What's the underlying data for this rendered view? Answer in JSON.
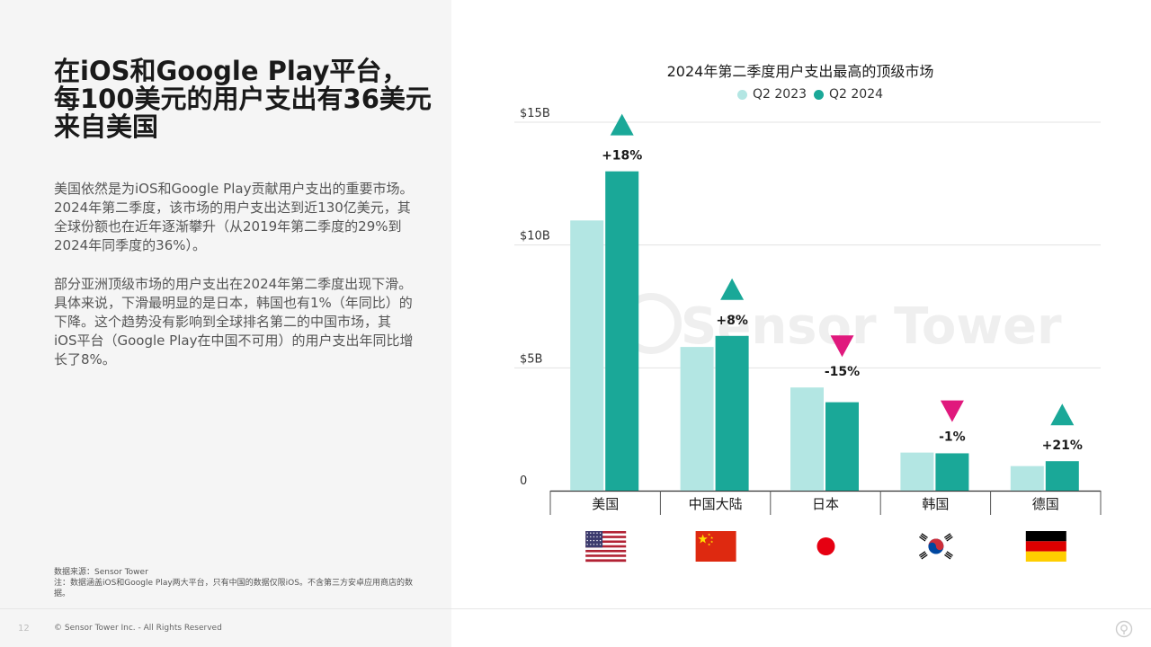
{
  "headline": "在iOS和Google Play平台，每100美元的用户支出有36美元来自美国",
  "paragraphs": [
    "美国依然是为iOS和Google Play贡献用户支出的重要市场。2024年第二季度，该市场的用户支出达到近130亿美元，其全球份额也在近年逐渐攀升（从2019年第二季度的29%到2024年同季度的36%）。",
    "部分亚洲顶级市场的用户支出在2024年第二季度出现下滑。具体来说，下滑最明显的是日本，韩国也有1%（年同比）的下降。这个趋势没有影响到全球排名第二的中国市场，其iOS平台（Google Play在中国不可用）的用户支出年同比增长了8%。"
  ],
  "source": {
    "line1": "数据来源：Sensor Tower",
    "line2": "注：数据涵盖iOS和Google Play两大平台，只有中国的数据仅限iOS。不含第三方安卓应用商店的数据。"
  },
  "footer": {
    "page_number": "12",
    "copyright": "© Sensor Tower Inc. - All Rights Reserved"
  },
  "watermark": "Sensor Tower",
  "colors": {
    "q2_2023": "#b3e6e3",
    "q2_2024": "#1aa898",
    "up": "#1aa898",
    "down": "#e0197d",
    "left_bg": "#f5f5f5"
  },
  "chart_data": {
    "type": "bar",
    "title": "2024年第二季度用户支出最高的顶级市场",
    "categories": [
      "美国",
      "中国大陆",
      "日本",
      "韩国",
      "德国"
    ],
    "series": [
      {
        "name": "Q2 2023",
        "values": [
          11.0,
          5.85,
          4.2,
          1.55,
          1.0
        ]
      },
      {
        "name": "Q2 2024",
        "values": [
          13.0,
          6.3,
          3.6,
          1.52,
          1.2
        ]
      }
    ],
    "changes": [
      "+18%",
      "+8%",
      "-15%",
      "-1%",
      "+21%"
    ],
    "directions": [
      "up",
      "up",
      "down",
      "down",
      "up"
    ],
    "flags": [
      "us-flag",
      "china-flag",
      "japan-flag",
      "korea-flag",
      "germany-flag"
    ],
    "yticks": [
      {
        "value": 0,
        "label": "0"
      },
      {
        "value": 5,
        "label": "$5B"
      },
      {
        "value": 10,
        "label": "$10B"
      },
      {
        "value": 15,
        "label": "$15B"
      }
    ],
    "ylim": [
      0,
      15
    ],
    "grid": true,
    "legend_position": "top"
  }
}
